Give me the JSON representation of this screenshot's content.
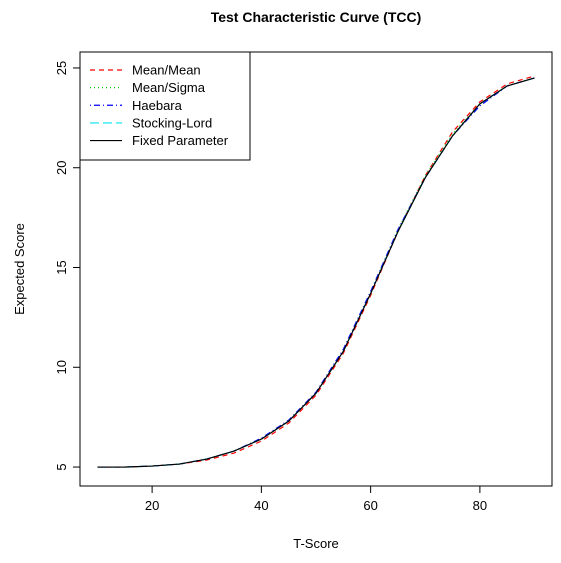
{
  "chart_data": {
    "type": "line",
    "title": "Test Characteristic Curve (TCC)",
    "x_label": "T-Score",
    "y_label": "Expected Score",
    "x": [
      10,
      15,
      20,
      25,
      30,
      35,
      40,
      45,
      50,
      55,
      60,
      65,
      70,
      75,
      80,
      85,
      90
    ],
    "series": [
      {
        "name": "Mean/Mean",
        "color": "#ff0000",
        "dash": "5,4",
        "values": [
          5.0,
          5.0,
          5.05,
          5.15,
          5.35,
          5.7,
          6.3,
          7.2,
          8.6,
          10.7,
          13.6,
          16.8,
          19.6,
          21.8,
          23.3,
          24.2,
          24.6
        ]
      },
      {
        "name": "Mean/Sigma",
        "color": "#00cd00",
        "dash": "1,3",
        "values": [
          5.0,
          5.0,
          5.05,
          5.15,
          5.4,
          5.8,
          6.4,
          7.3,
          8.7,
          10.8,
          13.7,
          16.9,
          19.6,
          21.7,
          23.2,
          24.1,
          24.5
        ]
      },
      {
        "name": "Haebara",
        "color": "#0000ff",
        "dash": "1,3,6,3",
        "values": [
          5.0,
          5.0,
          5.05,
          5.15,
          5.4,
          5.8,
          6.45,
          7.35,
          8.75,
          10.9,
          13.8,
          16.9,
          19.5,
          21.6,
          23.1,
          24.1,
          24.5
        ]
      },
      {
        "name": "Stocking-Lord",
        "color": "#00e5ee",
        "dash": "9,4",
        "values": [
          5.0,
          5.0,
          5.05,
          5.15,
          5.4,
          5.8,
          6.4,
          7.3,
          8.7,
          10.8,
          13.7,
          16.8,
          19.5,
          21.6,
          23.2,
          24.1,
          24.5
        ]
      },
      {
        "name": "Fixed Parameter",
        "color": "#000000",
        "dash": "",
        "values": [
          5.0,
          5.0,
          5.05,
          5.15,
          5.4,
          5.8,
          6.4,
          7.3,
          8.7,
          10.8,
          13.7,
          16.8,
          19.5,
          21.6,
          23.2,
          24.1,
          24.5
        ]
      }
    ],
    "xlim": [
      6.8,
      93.2
    ],
    "ylim": [
      4.05,
      25.8
    ],
    "xticks": [
      20,
      40,
      60,
      80
    ],
    "yticks": [
      5,
      10,
      15,
      20,
      25
    ],
    "legend": "top-left"
  }
}
